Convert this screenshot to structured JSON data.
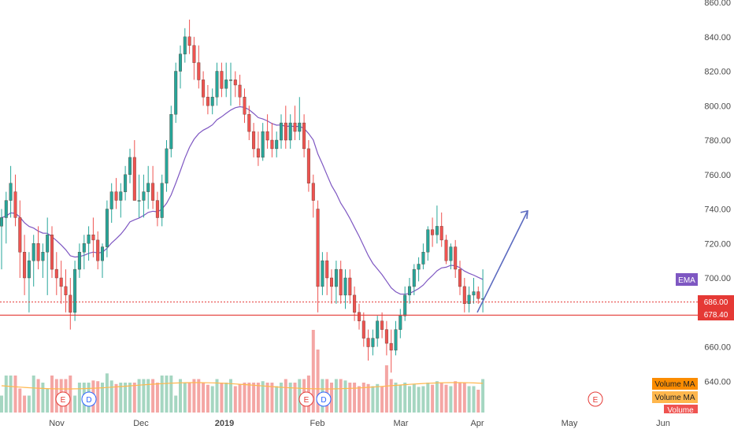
{
  "chart_data": {
    "type": "candlestick",
    "x_axis": {
      "labels": [
        "Nov",
        "Dec",
        "2019",
        "Feb",
        "Mar",
        "Apr",
        "May",
        "Jun"
      ],
      "bold_label": "2019"
    },
    "y_axis": {
      "ticks": [
        "860.00",
        "840.00",
        "820.00",
        "800.00",
        "780.00",
        "760.00",
        "740.00",
        "720.00",
        "700.00",
        "680.00",
        "660.00",
        "640.00"
      ],
      "range": [
        629,
        862
      ]
    },
    "candles_ohlc": [
      [
        730,
        740,
        705,
        735
      ],
      [
        735,
        750,
        720,
        745
      ],
      [
        745,
        765,
        735,
        755
      ],
      [
        750,
        760,
        730,
        735
      ],
      [
        735,
        745,
        700,
        715
      ],
      [
        715,
        725,
        690,
        700
      ],
      [
        700,
        715,
        680,
        710
      ],
      [
        710,
        725,
        695,
        720
      ],
      [
        720,
        730,
        705,
        710
      ],
      [
        710,
        720,
        700,
        715
      ],
      [
        715,
        735,
        690,
        725
      ],
      [
        725,
        730,
        700,
        705
      ],
      [
        705,
        715,
        690,
        700
      ],
      [
        700,
        710,
        685,
        695
      ],
      [
        695,
        705,
        680,
        690
      ],
      [
        690,
        700,
        670,
        680
      ],
      [
        680,
        710,
        675,
        705
      ],
      [
        705,
        720,
        700,
        715
      ],
      [
        715,
        725,
        705,
        720
      ],
      [
        720,
        730,
        710,
        725
      ],
      [
        725,
        735,
        712,
        722
      ],
      [
        722,
        727,
        705,
        710
      ],
      [
        710,
        720,
        700,
        718
      ],
      [
        718,
        745,
        712,
        740
      ],
      [
        740,
        755,
        732,
        750
      ],
      [
        750,
        758,
        740,
        745
      ],
      [
        745,
        755,
        735,
        750
      ],
      [
        750,
        765,
        745,
        760
      ],
      [
        760,
        775,
        755,
        770
      ],
      [
        770,
        780,
        760,
        745
      ],
      [
        745,
        760,
        735,
        745
      ],
      [
        745,
        760,
        735,
        750
      ],
      [
        750,
        765,
        740,
        755
      ],
      [
        755,
        765,
        740,
        745
      ],
      [
        745,
        750,
        730,
        735
      ],
      [
        735,
        760,
        730,
        755
      ],
      [
        755,
        780,
        750,
        775
      ],
      [
        775,
        800,
        770,
        795
      ],
      [
        795,
        825,
        790,
        820
      ],
      [
        820,
        835,
        810,
        830
      ],
      [
        830,
        845,
        825,
        840
      ],
      [
        840,
        850,
        830,
        835
      ],
      [
        835,
        840,
        815,
        825
      ],
      [
        825,
        835,
        810,
        815
      ],
      [
        815,
        820,
        800,
        805
      ],
      [
        805,
        812,
        795,
        800
      ],
      [
        800,
        810,
        795,
        805
      ],
      [
        805,
        825,
        800,
        820
      ],
      [
        820,
        825,
        805,
        810
      ],
      [
        810,
        825,
        805,
        815
      ],
      [
        815,
        825,
        800,
        815
      ],
      [
        815,
        820,
        805,
        812
      ],
      [
        812,
        818,
        800,
        805
      ],
      [
        805,
        810,
        790,
        795
      ],
      [
        795,
        800,
        780,
        785
      ],
      [
        785,
        790,
        770,
        775
      ],
      [
        775,
        785,
        765,
        770
      ],
      [
        770,
        790,
        768,
        785
      ],
      [
        785,
        795,
        775,
        780
      ],
      [
        780,
        790,
        770,
        775
      ],
      [
        775,
        785,
        770,
        780
      ],
      [
        780,
        795,
        775,
        790
      ],
      [
        790,
        800,
        775,
        780
      ],
      [
        780,
        795,
        775,
        790
      ],
      [
        790,
        800,
        780,
        785
      ],
      [
        785,
        805,
        780,
        790
      ],
      [
        790,
        795,
        770,
        775
      ],
      [
        775,
        780,
        750,
        755
      ],
      [
        755,
        760,
        735,
        745
      ],
      [
        740,
        745,
        680,
        695
      ],
      [
        695,
        715,
        690,
        710
      ],
      [
        710,
        715,
        690,
        700
      ],
      [
        700,
        705,
        685,
        695
      ],
      [
        695,
        710,
        685,
        705
      ],
      [
        705,
        710,
        685,
        690
      ],
      [
        690,
        705,
        682,
        700
      ],
      [
        700,
        705,
        685,
        690
      ],
      [
        690,
        695,
        675,
        680
      ],
      [
        680,
        685,
        670,
        675
      ],
      [
        675,
        680,
        660,
        665
      ],
      [
        665,
        670,
        652,
        660
      ],
      [
        660,
        670,
        655,
        665
      ],
      [
        665,
        678,
        660,
        675
      ],
      [
        675,
        680,
        665,
        670
      ],
      [
        670,
        675,
        655,
        662
      ],
      [
        662,
        670,
        645,
        658
      ],
      [
        658,
        675,
        655,
        670
      ],
      [
        670,
        682,
        665,
        678
      ],
      [
        678,
        695,
        675,
        690
      ],
      [
        690,
        700,
        685,
        695
      ],
      [
        695,
        708,
        690,
        705
      ],
      [
        705,
        712,
        698,
        708
      ],
      [
        708,
        720,
        705,
        715
      ],
      [
        715,
        730,
        710,
        728
      ],
      [
        728,
        735,
        718,
        725
      ],
      [
        725,
        742,
        720,
        730
      ],
      [
        730,
        738,
        718,
        722
      ],
      [
        722,
        725,
        708,
        710
      ],
      [
        710,
        720,
        705,
        718
      ],
      [
        718,
        722,
        700,
        705
      ],
      [
        705,
        710,
        690,
        695
      ],
      [
        695,
        700,
        680,
        685
      ],
      [
        685,
        695,
        680,
        690
      ],
      [
        690,
        700,
        685,
        692
      ],
      [
        692,
        695,
        685,
        688
      ],
      [
        688,
        705,
        680,
        688
      ]
    ],
    "series": [
      {
        "name": "EMA"
      },
      {
        "name": "Volume"
      },
      {
        "name": "Volume MA"
      }
    ],
    "price_levels": [
      {
        "value": 686.0,
        "label": "686.00",
        "style": "dotted"
      },
      {
        "value": 678.4,
        "label": "678.40",
        "style": "solid"
      }
    ],
    "projection_arrow": {
      "from": 680,
      "to": 738
    },
    "event_markers": [
      "E",
      "D",
      "E",
      "D",
      "E"
    ],
    "colors": {
      "up": "#26a69a",
      "down": "#ef5350",
      "ema": "#7e57c2",
      "volume_ma": "#ffb74d",
      "level": "#e53935",
      "arrow": "#5c6bc0",
      "dividend": "#2962ff",
      "earnings": "#e53935"
    }
  },
  "legend": {
    "ema_label": "EMA",
    "volume_ma_label_1": "Volume MA",
    "volume_ma_label_2": "Volume MA",
    "volume_label": "Volume"
  },
  "events": {
    "earnings_letter": "E",
    "dividend_letter": "D"
  }
}
